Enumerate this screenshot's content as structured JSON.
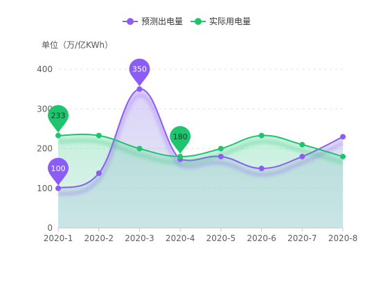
{
  "chart_data": {
    "type": "line",
    "title": "",
    "ylabel": "单位（万/亿KWh）",
    "xlabel": "",
    "categories": [
      "2020-1",
      "2020-2",
      "2020-3",
      "2020-4",
      "2020-5",
      "2020-6",
      "2020-7",
      "2020-8"
    ],
    "ylim": [
      0,
      400
    ],
    "yticks": [
      0,
      100,
      200,
      300,
      400
    ],
    "grid": true,
    "legend_position": "top-center",
    "series": [
      {
        "name": "预测出电量",
        "values": [
          100,
          138,
          350,
          173,
          180,
          150,
          180,
          230
        ],
        "color": "#8b5cf6",
        "area": true,
        "smooth": true,
        "markers": [
          {
            "label": "100",
            "category": "2020-1",
            "value": 100
          },
          {
            "label": "350",
            "category": "2020-3",
            "value": 350
          }
        ]
      },
      {
        "name": "实际用电量",
        "values": [
          233,
          233,
          200,
          180,
          200,
          233,
          210,
          180
        ],
        "color": "#1ec46e",
        "area": true,
        "smooth": true,
        "markers": [
          {
            "label": "233",
            "category": "2020-1",
            "value": 233
          },
          {
            "label": "180",
            "category": "2020-4",
            "value": 180
          }
        ]
      }
    ]
  }
}
